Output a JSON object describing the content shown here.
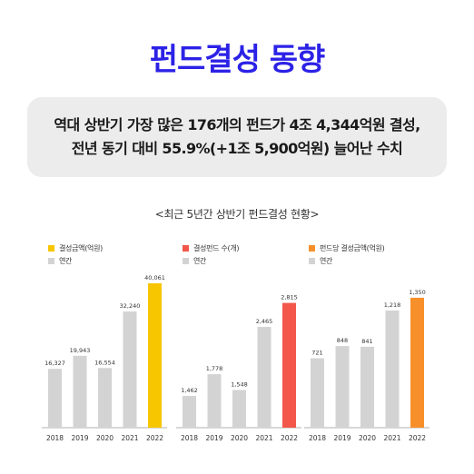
{
  "title": "펀드결성 동향",
  "summary": {
    "line1": "역대 상반기 가장 많은 176개의 펀드가 4조 4,344억원 결성,",
    "line2": "전년 동기 대비 55.9%(+1조 5,900억원) 늘어난 수치"
  },
  "subtitle": "<최근 5년간 상반기 펀드결성 현황>",
  "colors": {
    "gray": "#d3d3d3",
    "yellow": "#f7c600",
    "red": "#f2574a",
    "orange": "#f7902a"
  },
  "chart_data": [
    {
      "type": "bar",
      "legend": [
        "결성금액(억원)",
        "연간"
      ],
      "categories": [
        "2018",
        "2019",
        "2020",
        "2021",
        "2022"
      ],
      "values": [
        16327,
        19943,
        16554,
        32240,
        40061
      ],
      "value_labels": [
        "16,327",
        "19,943",
        "16,554",
        "32,240",
        "40,061"
      ],
      "highlight_index": 4,
      "highlight_color": "#f7c600",
      "ylim": [
        0,
        40061
      ]
    },
    {
      "type": "bar",
      "legend": [
        "결성펀드 수(개)",
        "연간"
      ],
      "categories": [
        "2018",
        "2019",
        "2020",
        "2021",
        "2022"
      ],
      "values": [
        1462,
        1778,
        1548,
        2465,
        2815
      ],
      "value_labels": [
        "1,462",
        "1,778",
        "1,548",
        "2,465",
        "2,815"
      ],
      "highlight_index": 4,
      "highlight_color": "#f2574a",
      "ylim": [
        1000,
        3100
      ]
    },
    {
      "type": "bar",
      "legend": [
        "펀드당 결성금액(억원)",
        "연간"
      ],
      "categories": [
        "2018",
        "2019",
        "2020",
        "2021",
        "2022"
      ],
      "values": [
        721,
        848,
        841,
        1218,
        1350
      ],
      "value_labels": [
        "721",
        "848",
        "841",
        "1,218",
        "1,350"
      ],
      "highlight_index": 4,
      "highlight_color": "#f7902a",
      "ylim": [
        0,
        1500
      ]
    }
  ]
}
